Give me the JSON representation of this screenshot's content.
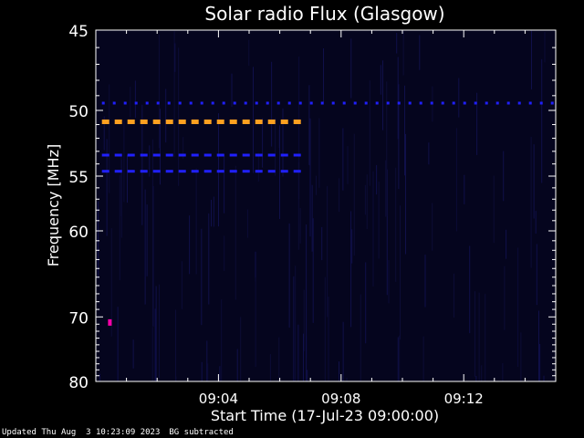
{
  "chart_data": {
    "type": "heatmap",
    "title": "Solar radio Flux (Glasgow)",
    "xlabel": "Start Time (17-Jul-23 09:00:00)",
    "ylabel": "Frequency [MHz]",
    "x_start": "09:00:00",
    "x_end": "09:15:00",
    "x_ticks": [
      {
        "label": "09:04",
        "minute": 4
      },
      {
        "label": "09:08",
        "minute": 8
      },
      {
        "label": "09:12",
        "minute": 12
      }
    ],
    "y_ticks": [
      45,
      50,
      55,
      60,
      70,
      80
    ],
    "ylim": [
      45,
      80
    ],
    "y_scale": "reciprocal",
    "y_inverted": true,
    "features": [
      {
        "frequency": 49.5,
        "from_minute": 0.2,
        "to_minute": 15,
        "intensity": "low",
        "color": "#2020ff",
        "pattern": "short-dashes"
      },
      {
        "frequency": 50.8,
        "from_minute": 0.2,
        "to_minute": 6.8,
        "intensity": "high",
        "color": "#ffa020",
        "pattern": "dashes"
      },
      {
        "frequency": 53.3,
        "from_minute": 0.2,
        "to_minute": 6.8,
        "intensity": "low",
        "color": "#2020ff",
        "pattern": "dashes"
      },
      {
        "frequency": 54.6,
        "from_minute": 0.2,
        "to_minute": 6.8,
        "intensity": "low",
        "color": "#2020ff",
        "pattern": "dashes"
      },
      {
        "frequency": 70.7,
        "from_minute": 0.4,
        "to_minute": 0.5,
        "intensity": "medium",
        "color": "#ff00aa",
        "pattern": "spot"
      }
    ]
  },
  "footer": {
    "updated": "Updated Thu Aug  3 10:23:09 2023",
    "note": "BG subtracted"
  },
  "colors": {
    "background": "#000000",
    "plot_background": "#05051e",
    "axis": "#ffffff"
  }
}
